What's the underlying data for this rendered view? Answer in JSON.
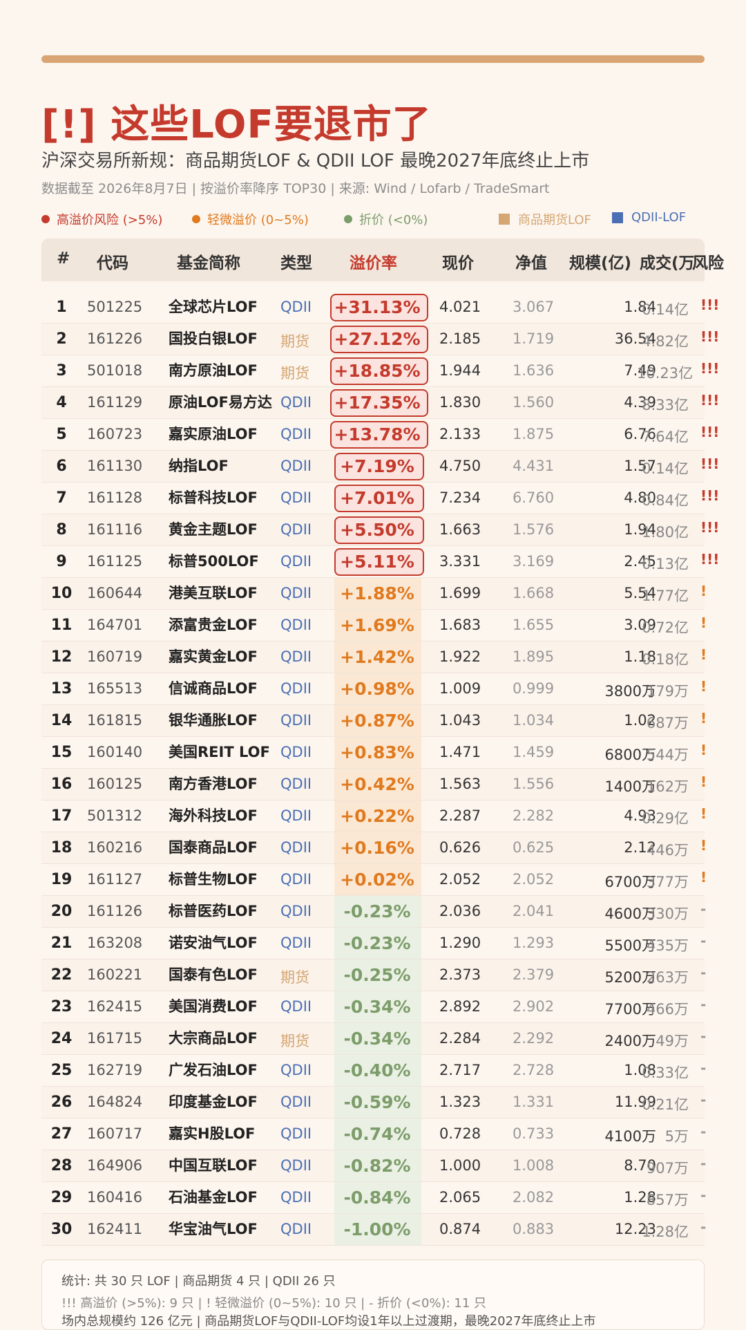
{
  "title": "[!] 这些LOF要退市了",
  "subtitle": "沪深交易所新规：商品期货LOF & QDII LOF 最晚2027年底终止上市",
  "meta": "数据截至 2026年8月7日 | 按溢价率降序 TOP30 | 来源: Wind / Lofarb / TradeSmart",
  "legend": {
    "high": "高溢价风险 (>5%)",
    "mild": "轻微溢价 (0~5%)",
    "discount": "折价 (<0%)",
    "commodity": "商品期货LOF",
    "qdii": "QDII-LOF"
  },
  "colors": {
    "high": "#c43a2c",
    "mild": "#e07a1f",
    "discount": "#7c9c6a",
    "commodity": "#d4a672",
    "qdii": "#4a6fb4"
  },
  "headers": {
    "num": "#",
    "code": "代码",
    "name": "基金简称",
    "type": "类型",
    "premium": "溢价率",
    "price": "现价",
    "nav": "净值",
    "scale": "规模(亿)",
    "volume": "成交(万",
    "risk": "风险"
  },
  "rows": [
    {
      "n": "1",
      "code": "501225",
      "name": "全球芯片LOF",
      "type": "QDII",
      "premium": "+31.13%",
      "price": "4.021",
      "nav": "3.067",
      "scale": "1.84",
      "volume": "0.14亿",
      "risk": "!!!",
      "level": "hi"
    },
    {
      "n": "2",
      "code": "161226",
      "name": "国投白银LOF",
      "type": "期货",
      "premium": "+27.12%",
      "price": "2.185",
      "nav": "1.719",
      "scale": "36.54",
      "volume": "4.82亿",
      "risk": "!!!",
      "level": "hi"
    },
    {
      "n": "3",
      "code": "501018",
      "name": "南方原油LOF",
      "type": "期货",
      "premium": "+18.85%",
      "price": "1.944",
      "nav": "1.636",
      "scale": "7.49",
      "volume": "10.23亿",
      "risk": "!!!",
      "level": "hi"
    },
    {
      "n": "4",
      "code": "161129",
      "name": "原油LOF易方达",
      "type": "QDII",
      "premium": "+17.35%",
      "price": "1.830",
      "nav": "1.560",
      "scale": "4.39",
      "volume": "8.33亿",
      "risk": "!!!",
      "level": "hi"
    },
    {
      "n": "5",
      "code": "160723",
      "name": "嘉实原油LOF",
      "type": "QDII",
      "premium": "+13.78%",
      "price": "2.133",
      "nav": "1.875",
      "scale": "6.76",
      "volume": "7.64亿",
      "risk": "!!!",
      "level": "hi"
    },
    {
      "n": "6",
      "code": "161130",
      "name": "纳指LOF",
      "type": "QDII",
      "premium": "+7.19%",
      "price": "4.750",
      "nav": "4.431",
      "scale": "1.57",
      "volume": "0.14亿",
      "risk": "!!!",
      "level": "hi"
    },
    {
      "n": "7",
      "code": "161128",
      "name": "标普科技LOF",
      "type": "QDII",
      "premium": "+7.01%",
      "price": "7.234",
      "nav": "6.760",
      "scale": "4.80",
      "volume": "0.84亿",
      "risk": "!!!",
      "level": "hi"
    },
    {
      "n": "8",
      "code": "161116",
      "name": "黄金主题LOF",
      "type": "QDII",
      "premium": "+5.50%",
      "price": "1.663",
      "nav": "1.576",
      "scale": "1.94",
      "volume": "1.80亿",
      "risk": "!!!",
      "level": "hi"
    },
    {
      "n": "9",
      "code": "161125",
      "name": "标普500LOF",
      "type": "QDII",
      "premium": "+5.11%",
      "price": "3.331",
      "nav": "3.169",
      "scale": "2.45",
      "volume": "0.13亿",
      "risk": "!!!",
      "level": "hi"
    },
    {
      "n": "10",
      "code": "160644",
      "name": "港美互联LOF",
      "type": "QDII",
      "premium": "+1.88%",
      "price": "1.699",
      "nav": "1.668",
      "scale": "5.54",
      "volume": "1.77亿",
      "risk": "!",
      "level": "md"
    },
    {
      "n": "11",
      "code": "164701",
      "name": "添富贵金LOF",
      "type": "QDII",
      "premium": "+1.69%",
      "price": "1.683",
      "nav": "1.655",
      "scale": "3.09",
      "volume": "0.72亿",
      "risk": "!",
      "level": "md"
    },
    {
      "n": "12",
      "code": "160719",
      "name": "嘉实黄金LOF",
      "type": "QDII",
      "premium": "+1.42%",
      "price": "1.922",
      "nav": "1.895",
      "scale": "1.18",
      "volume": "0.18亿",
      "risk": "!",
      "level": "md"
    },
    {
      "n": "13",
      "code": "165513",
      "name": "信诚商品LOF",
      "type": "QDII",
      "premium": "+0.98%",
      "price": "1.009",
      "nav": "0.999",
      "scale": "3800万",
      "volume": "179万",
      "risk": "!",
      "level": "md"
    },
    {
      "n": "14",
      "code": "161815",
      "name": "银华通胀LOF",
      "type": "QDII",
      "premium": "+0.87%",
      "price": "1.043",
      "nav": "1.034",
      "scale": "1.02",
      "volume": "687万",
      "risk": "!",
      "level": "md"
    },
    {
      "n": "15",
      "code": "160140",
      "name": "美国REIT LOF",
      "type": "QDII",
      "premium": "+0.83%",
      "price": "1.471",
      "nav": "1.459",
      "scale": "6800万",
      "volume": "544万",
      "risk": "!",
      "level": "md"
    },
    {
      "n": "16",
      "code": "160125",
      "name": "南方香港LOF",
      "type": "QDII",
      "premium": "+0.42%",
      "price": "1.563",
      "nav": "1.556",
      "scale": "1400万",
      "volume": "162万",
      "risk": "!",
      "level": "md"
    },
    {
      "n": "17",
      "code": "501312",
      "name": "海外科技LOF",
      "type": "QDII",
      "premium": "+0.22%",
      "price": "2.287",
      "nav": "2.282",
      "scale": "4.93",
      "volume": "0.29亿",
      "risk": "!",
      "level": "md"
    },
    {
      "n": "18",
      "code": "160216",
      "name": "国泰商品LOF",
      "type": "QDII",
      "premium": "+0.16%",
      "price": "0.626",
      "nav": "0.625",
      "scale": "2.12",
      "volume": "446万",
      "risk": "!",
      "level": "md"
    },
    {
      "n": "19",
      "code": "161127",
      "name": "标普生物LOF",
      "type": "QDII",
      "premium": "+0.02%",
      "price": "2.052",
      "nav": "2.052",
      "scale": "6700万",
      "volume": "377万",
      "risk": "!",
      "level": "md"
    },
    {
      "n": "20",
      "code": "161126",
      "name": "标普医药LOF",
      "type": "QDII",
      "premium": "-0.23%",
      "price": "2.036",
      "nav": "2.041",
      "scale": "4600万",
      "volume": "330万",
      "risk": "-",
      "level": "lo"
    },
    {
      "n": "21",
      "code": "163208",
      "name": "诺安油气LOF",
      "type": "QDII",
      "premium": "-0.23%",
      "price": "1.290",
      "nav": "1.293",
      "scale": "5500万",
      "volume": "435万",
      "risk": "-",
      "level": "lo"
    },
    {
      "n": "22",
      "code": "160221",
      "name": "国泰有色LOF",
      "type": "期货",
      "premium": "-0.25%",
      "price": "2.373",
      "nav": "2.379",
      "scale": "5200万",
      "volume": "263万",
      "risk": "-",
      "level": "lo"
    },
    {
      "n": "23",
      "code": "162415",
      "name": "美国消费LOF",
      "type": "QDII",
      "premium": "-0.34%",
      "price": "2.892",
      "nav": "2.902",
      "scale": "7700万",
      "volume": "466万",
      "risk": "-",
      "level": "lo"
    },
    {
      "n": "24",
      "code": "161715",
      "name": "大宗商品LOF",
      "type": "期货",
      "premium": "-0.34%",
      "price": "2.284",
      "nav": "2.292",
      "scale": "2400万",
      "volume": "49万",
      "risk": "-",
      "level": "lo"
    },
    {
      "n": "25",
      "code": "162719",
      "name": "广发石油LOF",
      "type": "QDII",
      "premium": "-0.40%",
      "price": "2.717",
      "nav": "2.728",
      "scale": "1.08",
      "volume": "0.33亿",
      "risk": "-",
      "level": "lo"
    },
    {
      "n": "26",
      "code": "164824",
      "name": "印度基金LOF",
      "type": "QDII",
      "premium": "-0.59%",
      "price": "1.323",
      "nav": "1.331",
      "scale": "11.99",
      "volume": "0.21亿",
      "risk": "-",
      "level": "lo"
    },
    {
      "n": "27",
      "code": "160717",
      "name": "嘉实H股LOF",
      "type": "QDII",
      "premium": "-0.74%",
      "price": "0.728",
      "nav": "0.733",
      "scale": "4100万",
      "volume": "5万",
      "risk": "-",
      "level": "lo"
    },
    {
      "n": "28",
      "code": "164906",
      "name": "中国互联LOF",
      "type": "QDII",
      "premium": "-0.82%",
      "price": "1.000",
      "nav": "1.008",
      "scale": "8.70",
      "volume": "907万",
      "risk": "-",
      "level": "lo"
    },
    {
      "n": "29",
      "code": "160416",
      "name": "石油基金LOF",
      "type": "QDII",
      "premium": "-0.84%",
      "price": "2.065",
      "nav": "2.082",
      "scale": "1.28",
      "volume": "857万",
      "risk": "-",
      "level": "lo"
    },
    {
      "n": "30",
      "code": "162411",
      "name": "华宝油气LOF",
      "type": "QDII",
      "premium": "-1.00%",
      "price": "0.874",
      "nav": "0.883",
      "scale": "12.23",
      "volume": "1.28亿",
      "risk": "-",
      "level": "lo"
    }
  ],
  "footer": {
    "line1": "统计: 共 30 只 LOF | 商品期货 4 只 | QDII 26 只",
    "line2": "!!! 高溢价 (>5%): 9 只  | ! 轻微溢价 (0~5%): 10 只  |  - 折价 (<0%): 11 只",
    "line3": "场内总规模约 126 亿元 | 商品期货LOF与QDII-LOF均设1年以上过渡期，最晚2027年底终止上市"
  }
}
